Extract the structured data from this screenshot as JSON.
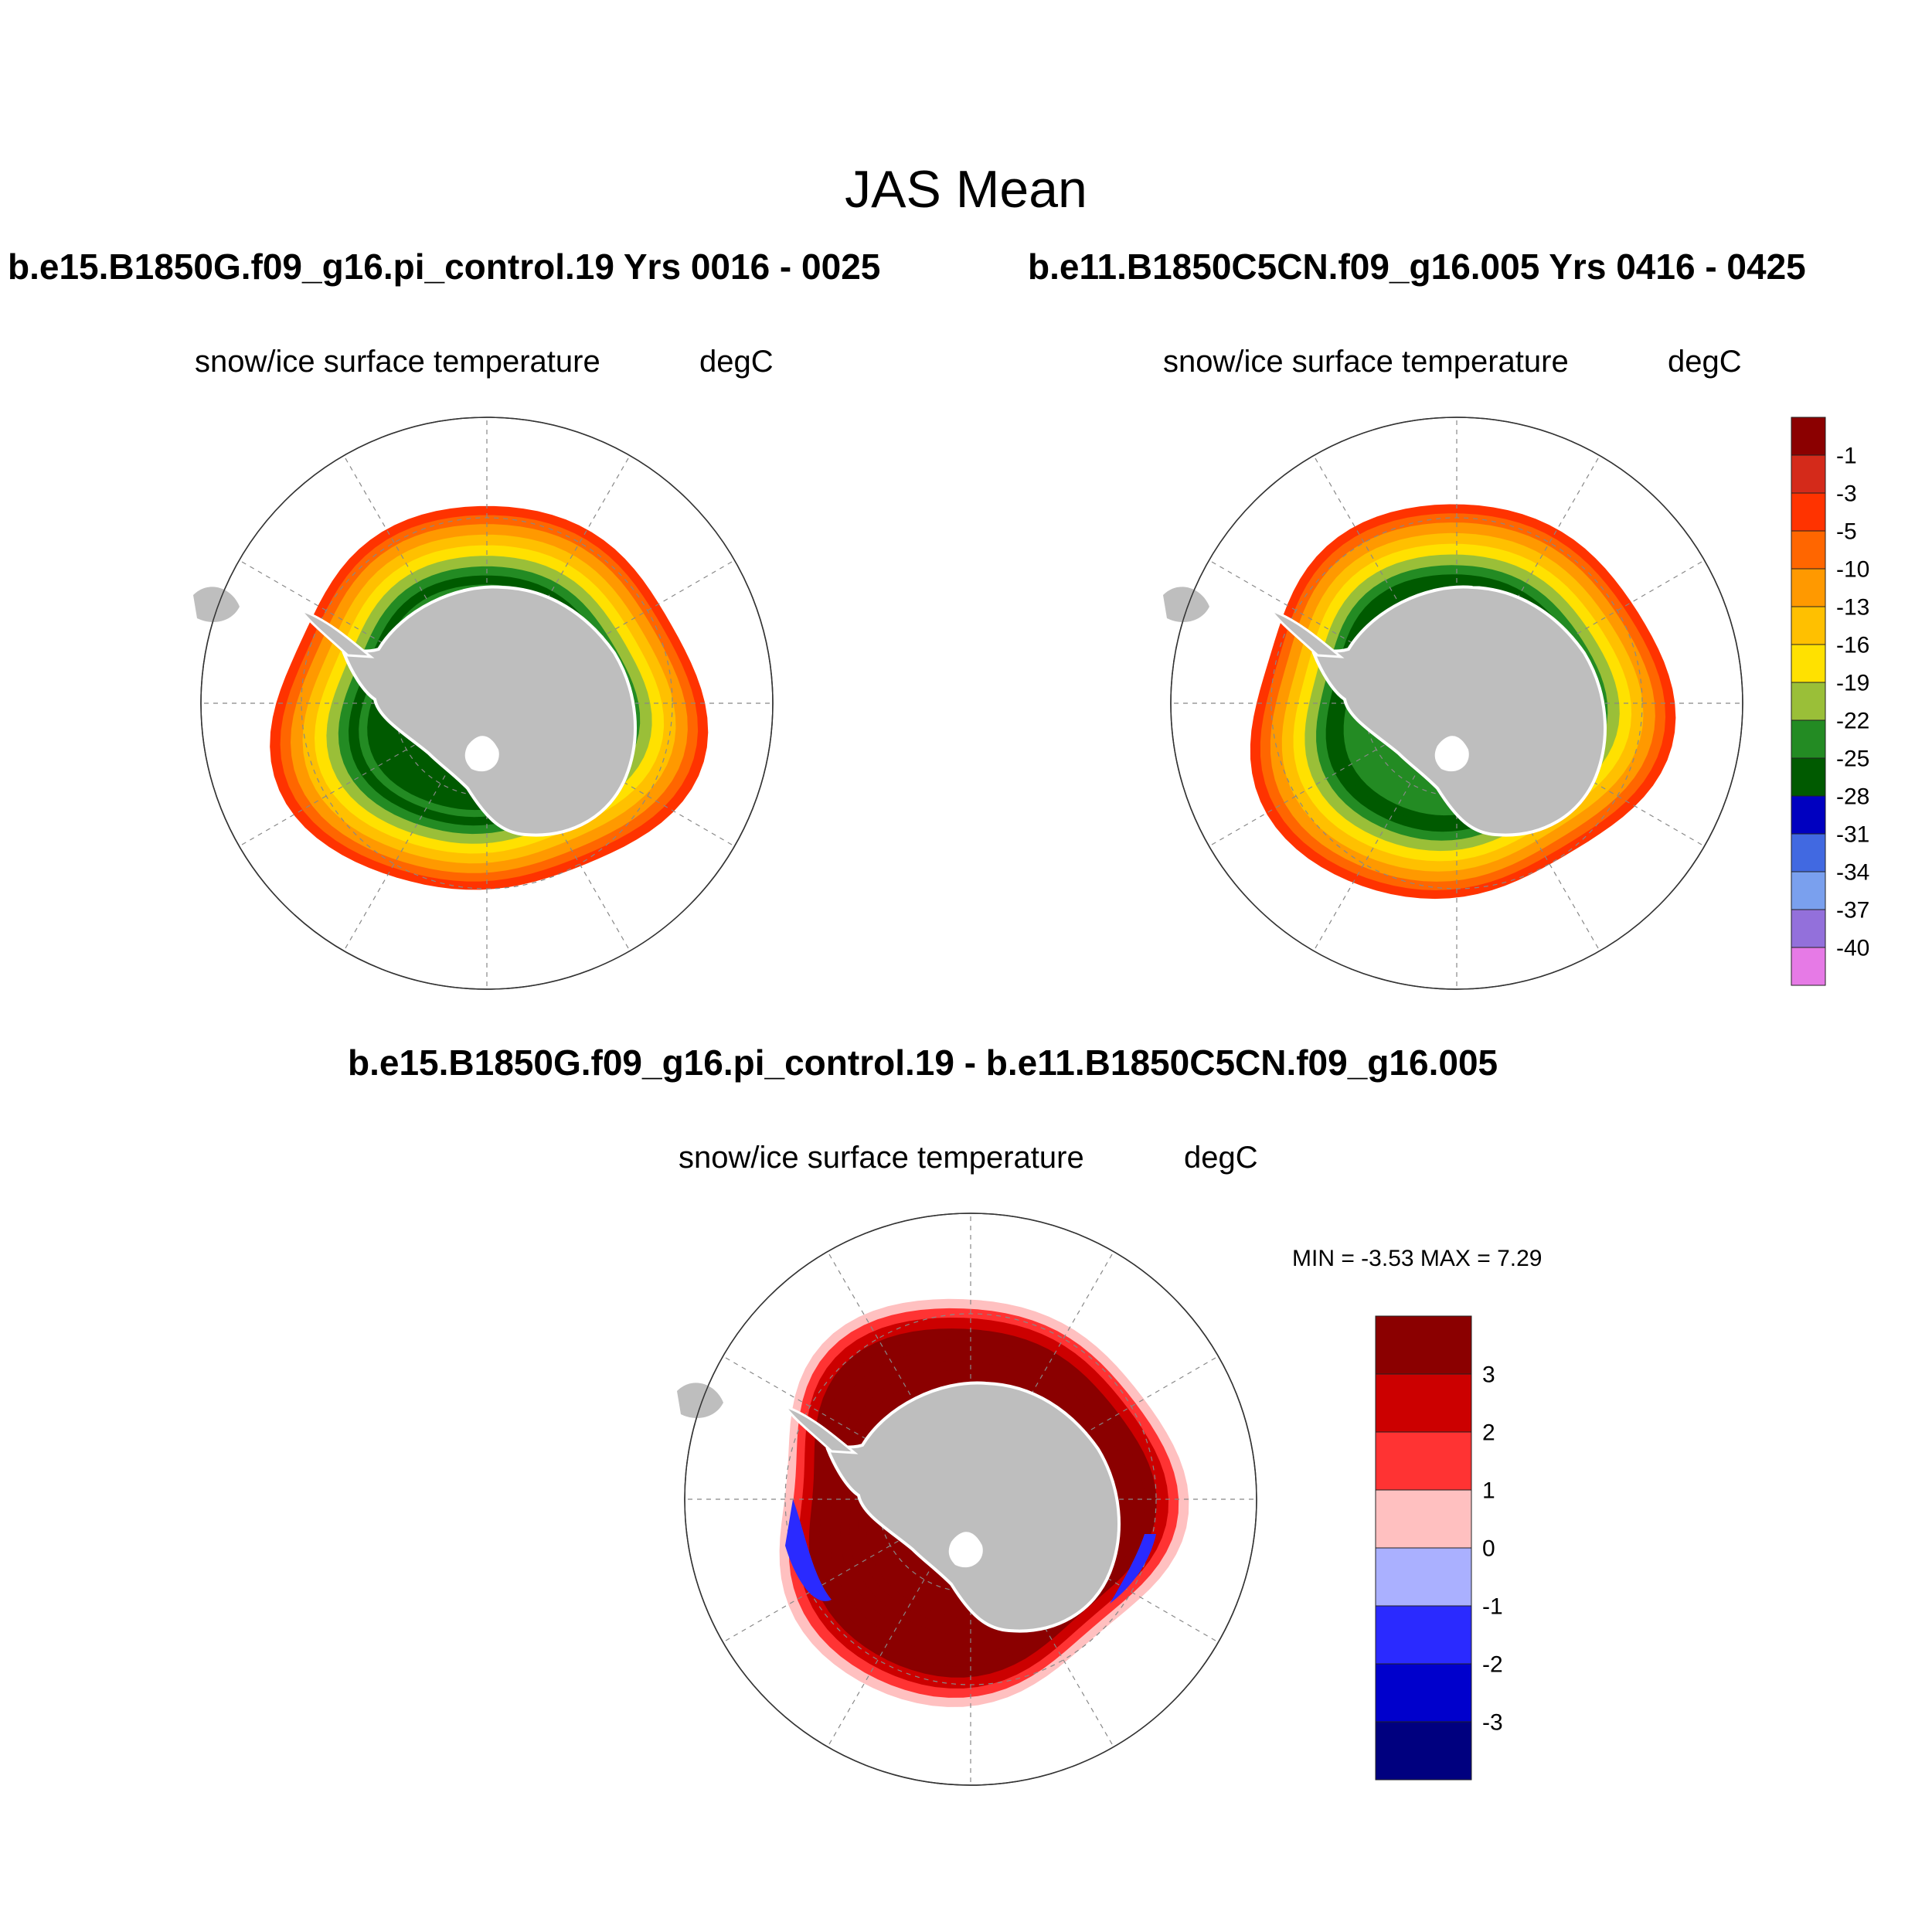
{
  "title": "JAS Mean",
  "panels": [
    {
      "case_title": "b.e15.B1850G.f09_g16.pi_control.19  Yrs 0016 - 0025",
      "variable": "snow/ice surface temperature",
      "units": "degC"
    },
    {
      "case_title": "b.e11.B1850C5CN.f09_g16.005  Yrs 0416 - 0425",
      "variable": "snow/ice surface temperature",
      "units": "degC"
    }
  ],
  "diff_panel": {
    "case_title": "b.e15.B1850G.f09_g16.pi_control.19 - b.e11.B1850C5CN.f09_g16.005",
    "variable": "snow/ice surface temperature",
    "units": "degC",
    "minmax_text": "MIN =  -3.53 MAX =   7.29",
    "min": -3.53,
    "max": 7.29
  },
  "colorbar_top": {
    "labels": [
      "-1",
      "-3",
      "-5",
      "-10",
      "-13",
      "-16",
      "-19",
      "-22",
      "-25",
      "-28",
      "-31",
      "-34",
      "-37",
      "-40"
    ],
    "colors": [
      "#8b0000",
      "#d42a1a",
      "#ff3300",
      "#ff6600",
      "#ff9900",
      "#ffc000",
      "#ffe100",
      "#9abf38",
      "#238b23",
      "#005a00",
      "#0000c0",
      "#4169e1",
      "#7aa0ee",
      "#9370db",
      "#e67ae6"
    ]
  },
  "colorbar_diff": {
    "labels": [
      "3",
      "2",
      "1",
      "0",
      "-1",
      "-2",
      "-3"
    ],
    "colors": [
      "#8b0000",
      "#cc0000",
      "#ff3333",
      "#ffc0c0",
      "#aab0ff",
      "#2a2aff",
      "#0000cc",
      "#00007f"
    ]
  },
  "map_colors": {
    "land": "#bebebe",
    "ocean": "#ffffff",
    "grid": "#888888"
  }
}
